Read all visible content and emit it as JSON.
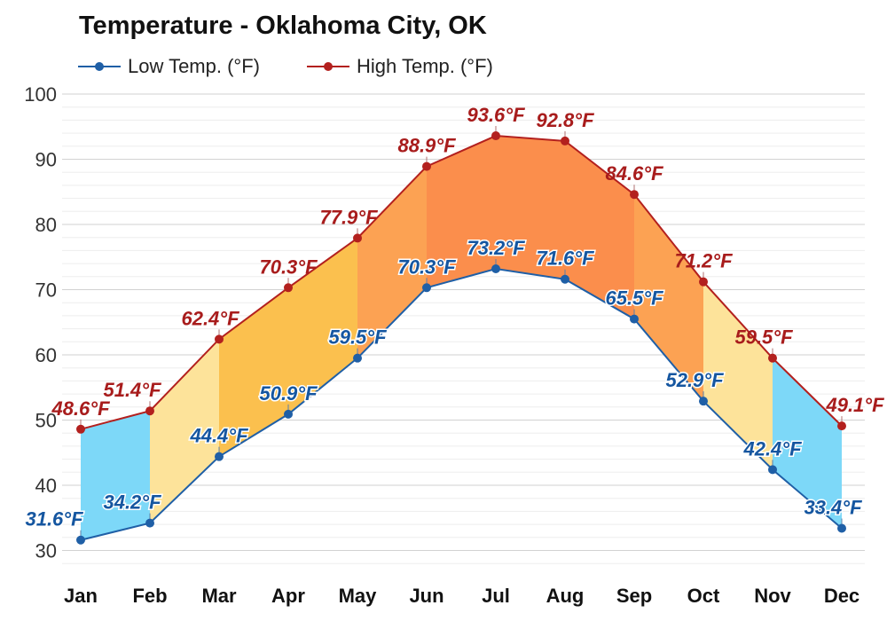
{
  "title": "Temperature - Oklahoma City, OK",
  "legend": {
    "low_label": "Low Temp. (°F)",
    "high_label": "High Temp. (°F)"
  },
  "colors": {
    "low_line": "#1f5fa6",
    "low_label": "#1556a0",
    "high_line": "#b3201e",
    "high_label": "#a81c1c",
    "grid": "#e2e2e2",
    "axis_text": "#333333",
    "band_cold": "#7dd8f8",
    "band_cool": "#fde39a",
    "band_mild": "#fbc04e",
    "band_warm": "#fca253",
    "band_hot": "#fb8e4c"
  },
  "chart_data": {
    "type": "area",
    "title": "Temperature - Oklahoma City, OK",
    "categories": [
      "Jan",
      "Feb",
      "Mar",
      "Apr",
      "May",
      "Jun",
      "Jul",
      "Aug",
      "Sep",
      "Oct",
      "Nov",
      "Dec"
    ],
    "series": [
      {
        "name": "Low Temp. (°F)",
        "values": [
          31.6,
          34.2,
          44.4,
          50.9,
          59.5,
          70.3,
          73.2,
          71.6,
          65.5,
          52.9,
          42.4,
          33.4
        ]
      },
      {
        "name": "High Temp. (°F)",
        "values": [
          48.6,
          51.4,
          62.4,
          70.3,
          77.9,
          88.9,
          93.6,
          92.8,
          84.6,
          71.2,
          59.5,
          49.1
        ]
      }
    ],
    "value_labels": {
      "low": [
        "31.6°F",
        "34.2°F",
        "44.4°F",
        "50.9°F",
        "59.5°F",
        "70.3°F",
        "73.2°F",
        "71.6°F",
        "65.5°F",
        "52.9°F",
        "42.4°F",
        "33.4°F"
      ],
      "high": [
        "48.6°F",
        "51.4°F",
        "62.4°F",
        "70.3°F",
        "77.9°F",
        "88.9°F",
        "93.6°F",
        "92.8°F",
        "84.6°F",
        "71.2°F",
        "59.5°F",
        "49.1°F"
      ]
    },
    "y_ticks": [
      "30",
      "40",
      "50",
      "60",
      "70",
      "80",
      "90",
      "100"
    ],
    "ylim": [
      28,
      100
    ],
    "grid": true,
    "legend_position": "top-left"
  }
}
